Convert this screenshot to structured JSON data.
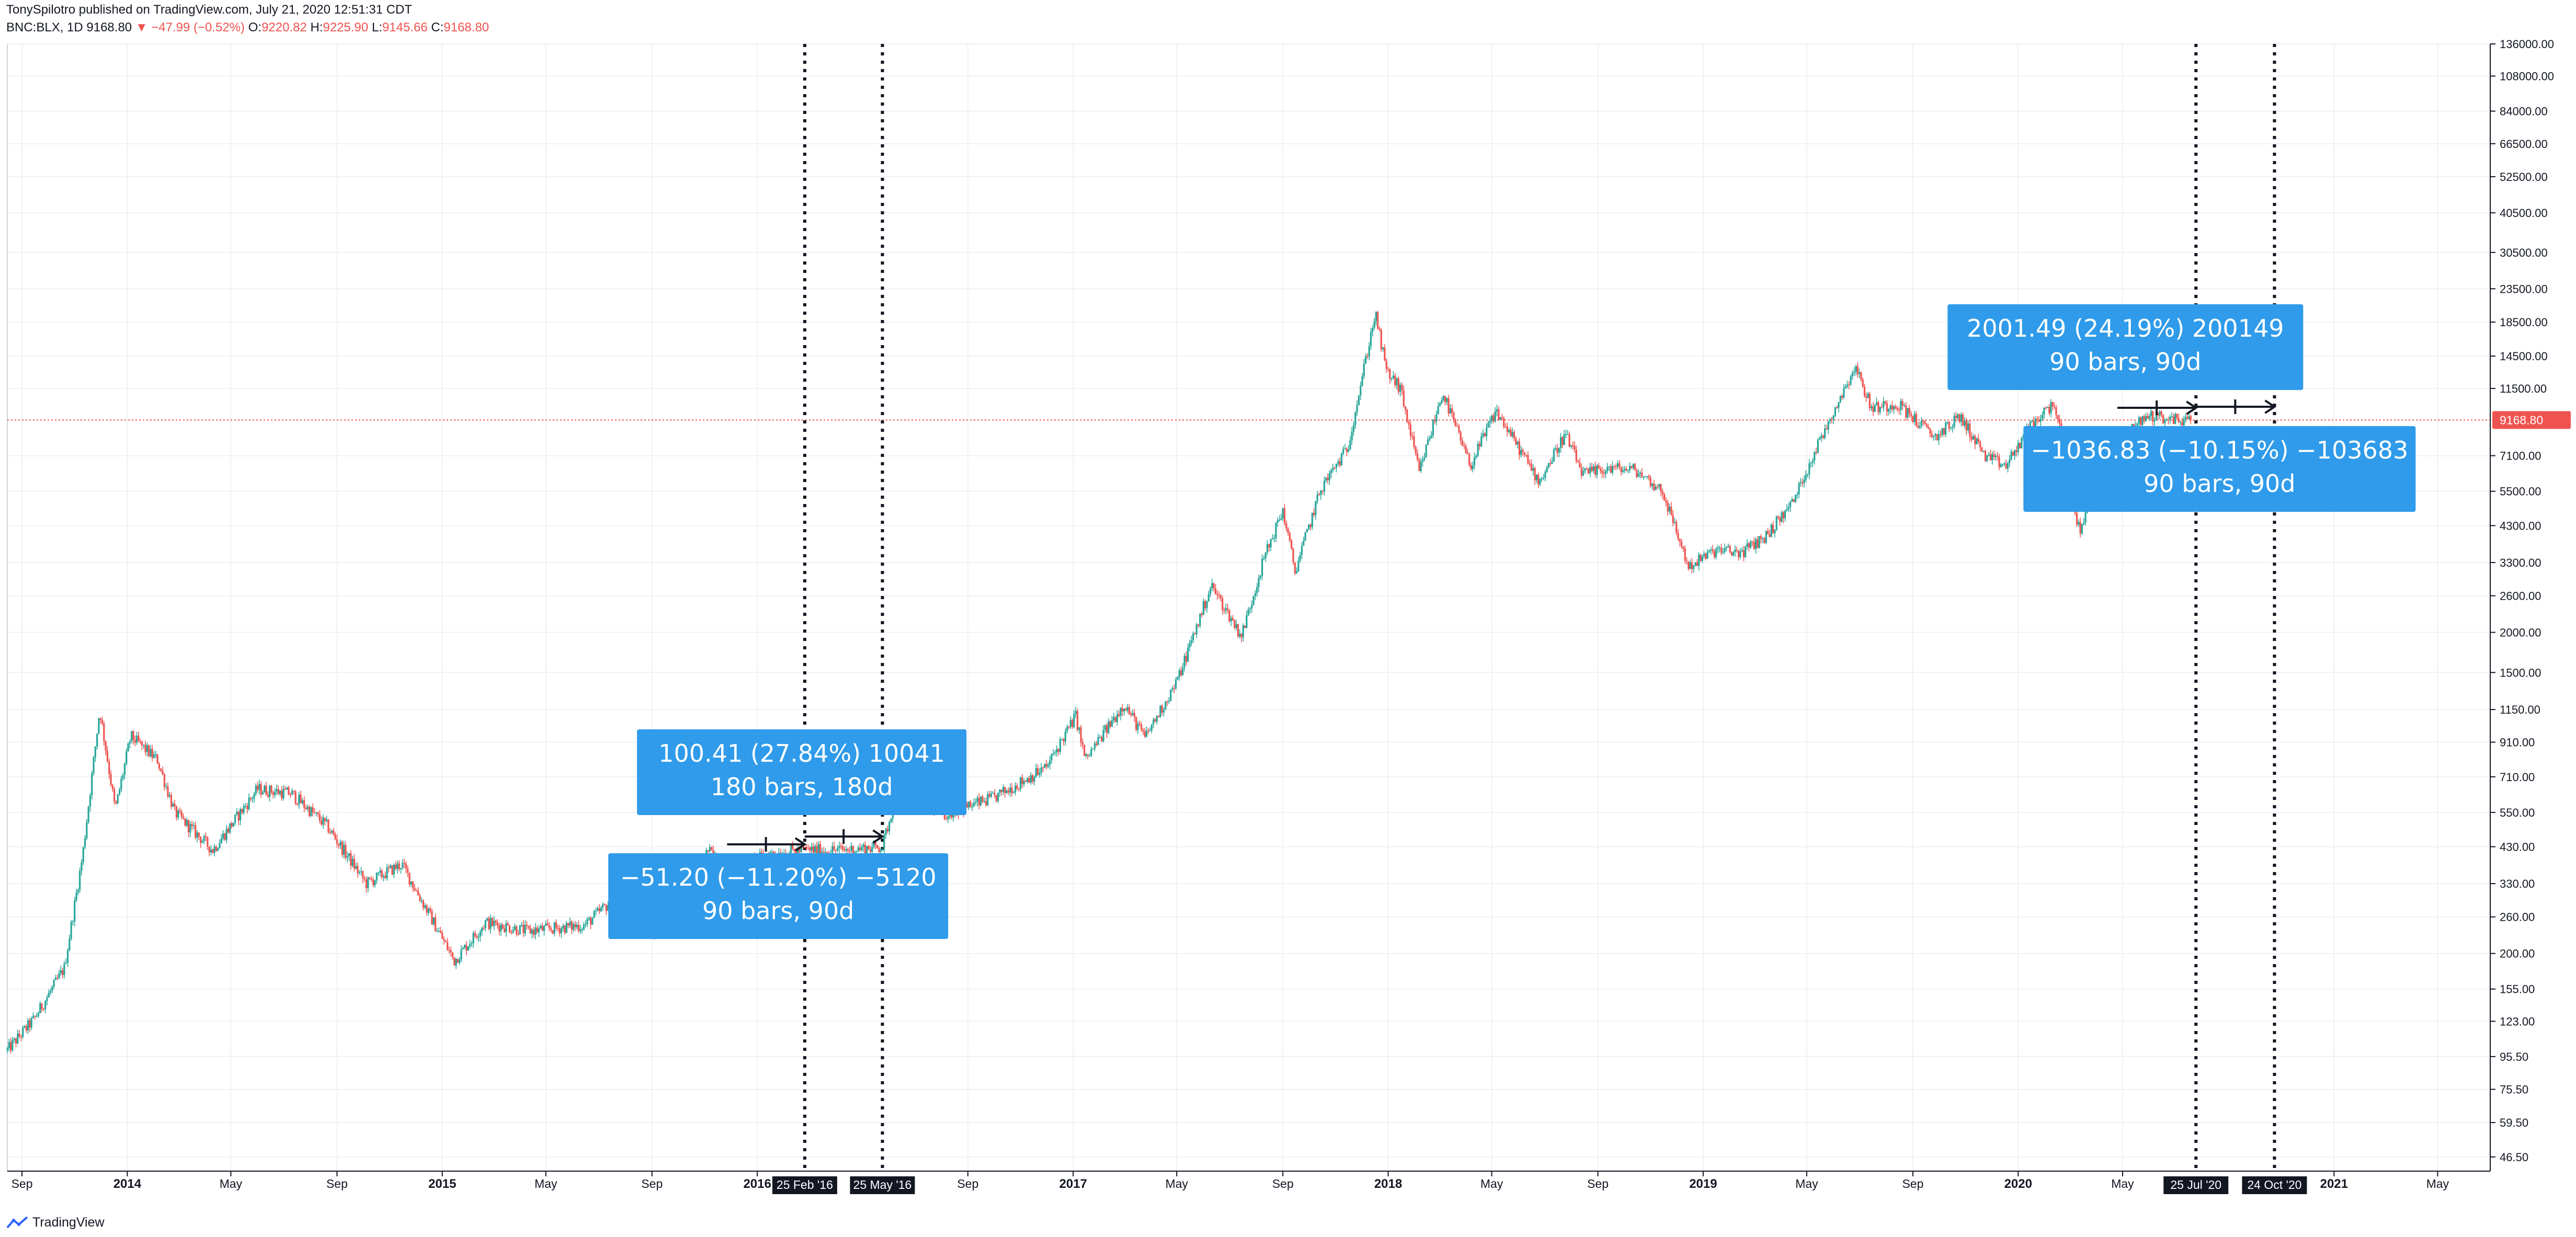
{
  "header": {
    "line1": "TonySpilotro published on TradingView.com, July 21, 2020 12:51:31 CDT",
    "symbol": "BNC:BLX, 1D",
    "last": "9168.80",
    "change": "▼ −47.99 (−0.52%)",
    "o_label": "O:",
    "o_value": "9220.82",
    "h_label": "H:",
    "h_value": "9225.90",
    "l_label": "L:",
    "l_value": "9145.66",
    "c_label": "C:",
    "c_value": "9168.80"
  },
  "footer": {
    "brand": "TradingView"
  },
  "price_tag": "9168.80",
  "colors": {
    "up": "#26a69a",
    "down": "#ef5350",
    "box": "#2f9bea",
    "text": "#131722",
    "priceline": "#ef5350"
  },
  "chart_data": {
    "type": "line",
    "title": "",
    "xlabel": "",
    "ylabel": "",
    "log_scale": true,
    "ylim": [
      42,
      136000
    ],
    "xlim": [
      "2013-08-15",
      "2021-07-01"
    ],
    "grid": true,
    "y_ticks": [
      "136000.00",
      "108000.00",
      "84000.00",
      "66500.00",
      "52500.00",
      "40500.00",
      "30500.00",
      "23500.00",
      "18500.00",
      "14500.00",
      "11500.00",
      "9168.80",
      "7100.00",
      "5500.00",
      "4300.00",
      "3300.00",
      "2600.00",
      "2000.00",
      "1500.00",
      "1150.00",
      "910.00",
      "710.00",
      "550.00",
      "430.00",
      "330.00",
      "260.00",
      "200.00",
      "155.00",
      "123.00",
      "95.50",
      "75.50",
      "59.50",
      "46.50"
    ],
    "x_ticks": [
      {
        "label": "Sep",
        "date": "2013-09-01",
        "bold": false
      },
      {
        "label": "2014",
        "date": "2014-01-01",
        "bold": true
      },
      {
        "label": "May",
        "date": "2014-05-01",
        "bold": false
      },
      {
        "label": "Sep",
        "date": "2014-09-01",
        "bold": false
      },
      {
        "label": "2015",
        "date": "2015-01-01",
        "bold": true
      },
      {
        "label": "May",
        "date": "2015-05-01",
        "bold": false
      },
      {
        "label": "Sep",
        "date": "2015-09-01",
        "bold": false
      },
      {
        "label": "2016",
        "date": "2016-01-01",
        "bold": true
      },
      {
        "label": "Sep",
        "date": "2016-09-01",
        "bold": false
      },
      {
        "label": "2017",
        "date": "2017-01-01",
        "bold": true
      },
      {
        "label": "May",
        "date": "2017-05-01",
        "bold": false
      },
      {
        "label": "Sep",
        "date": "2017-09-01",
        "bold": false
      },
      {
        "label": "2018",
        "date": "2018-01-01",
        "bold": true
      },
      {
        "label": "May",
        "date": "2018-05-01",
        "bold": false
      },
      {
        "label": "Sep",
        "date": "2018-09-01",
        "bold": false
      },
      {
        "label": "2019",
        "date": "2019-01-01",
        "bold": true
      },
      {
        "label": "May",
        "date": "2019-05-01",
        "bold": false
      },
      {
        "label": "Sep",
        "date": "2019-09-01",
        "bold": false
      },
      {
        "label": "2020",
        "date": "2020-01-01",
        "bold": true
      },
      {
        "label": "May",
        "date": "2020-05-01",
        "bold": false
      },
      {
        "label": "2021",
        "date": "2021-01-01",
        "bold": true
      },
      {
        "label": "May",
        "date": "2021-05-01",
        "bold": false
      }
    ],
    "vlines": [
      {
        "date": "2016-02-25",
        "label": "25 Feb '16"
      },
      {
        "date": "2016-05-25",
        "label": "25 May '16"
      },
      {
        "date": "2020-07-25",
        "label": "25 Jul '20"
      },
      {
        "date": "2020-10-24",
        "label": "24 Oct '20"
      }
    ],
    "series": [
      {
        "values": [
          [
            "2013-08-15",
            100
          ],
          [
            "2013-09-15",
            125
          ],
          [
            "2013-10-20",
            180
          ],
          [
            "2013-11-10",
            400
          ],
          [
            "2013-11-30",
            1150
          ],
          [
            "2013-12-18",
            560
          ],
          [
            "2014-01-05",
            950
          ],
          [
            "2014-02-05",
            800
          ],
          [
            "2014-02-25",
            550
          ],
          [
            "2014-04-10",
            420
          ],
          [
            "2014-06-01",
            650
          ],
          [
            "2014-07-10",
            630
          ],
          [
            "2014-08-20",
            500
          ],
          [
            "2014-10-05",
            330
          ],
          [
            "2014-11-15",
            380
          ],
          [
            "2015-01-15",
            190
          ],
          [
            "2015-02-20",
            250
          ],
          [
            "2015-04-10",
            235
          ],
          [
            "2015-06-15",
            245
          ],
          [
            "2015-07-15",
            290
          ],
          [
            "2015-09-01",
            230
          ],
          [
            "2015-10-15",
            260
          ],
          [
            "2015-11-04",
            420
          ],
          [
            "2015-12-01",
            360
          ],
          [
            "2016-01-15",
            410
          ],
          [
            "2016-02-25",
            420
          ],
          [
            "2016-04-10",
            420
          ],
          [
            "2016-05-25",
            430
          ],
          [
            "2016-06-17",
            740
          ],
          [
            "2016-08-02",
            540
          ],
          [
            "2016-10-01",
            610
          ],
          [
            "2016-12-01",
            760
          ],
          [
            "2017-01-04",
            1100
          ],
          [
            "2017-01-15",
            800
          ],
          [
            "2017-03-01",
            1200
          ],
          [
            "2017-03-25",
            940
          ],
          [
            "2017-05-01",
            1400
          ],
          [
            "2017-06-10",
            2800
          ],
          [
            "2017-07-15",
            1950
          ],
          [
            "2017-08-10",
            3400
          ],
          [
            "2017-09-01",
            4800
          ],
          [
            "2017-09-15",
            3100
          ],
          [
            "2017-10-15",
            5600
          ],
          [
            "2017-11-15",
            7500
          ],
          [
            "2017-12-17",
            19700
          ],
          [
            "2017-12-30",
            13000
          ],
          [
            "2018-01-15",
            11500
          ],
          [
            "2018-02-06",
            6300
          ],
          [
            "2018-03-05",
            11200
          ],
          [
            "2018-04-06",
            6600
          ],
          [
            "2018-05-06",
            9800
          ],
          [
            "2018-06-25",
            5900
          ],
          [
            "2018-07-25",
            8300
          ],
          [
            "2018-08-15",
            6200
          ],
          [
            "2018-09-15",
            6500
          ],
          [
            "2018-10-15",
            6400
          ],
          [
            "2018-11-15",
            5500
          ],
          [
            "2018-12-15",
            3200
          ],
          [
            "2019-01-15",
            3600
          ],
          [
            "2019-02-15",
            3550
          ],
          [
            "2019-03-15",
            4000
          ],
          [
            "2019-04-15",
            5100
          ],
          [
            "2019-05-15",
            7800
          ],
          [
            "2019-06-26",
            13500
          ],
          [
            "2019-07-15",
            10000
          ],
          [
            "2019-08-15",
            10300
          ],
          [
            "2019-09-26",
            8100
          ],
          [
            "2019-10-26",
            9400
          ],
          [
            "2019-11-25",
            7000
          ],
          [
            "2019-12-18",
            6600
          ],
          [
            "2020-01-15",
            8800
          ],
          [
            "2020-02-12",
            10400
          ],
          [
            "2020-03-12",
            4100
          ],
          [
            "2020-04-10",
            6900
          ],
          [
            "2020-05-10",
            8600
          ],
          [
            "2020-06-01",
            9500
          ],
          [
            "2020-07-01",
            9200
          ],
          [
            "2020-07-20",
            9168.8
          ]
        ]
      }
    ],
    "annotations": [
      {
        "text1": "100.41 (27.84%) 10041",
        "text2": "180 bars, 180d"
      },
      {
        "text1": "−51.20 (−11.20%) −5120",
        "text2": "90 bars, 90d"
      },
      {
        "text1": "2001.49 (24.19%) 200149",
        "text2": "90 bars, 90d"
      },
      {
        "text1": "−1036.83 (−10.15%) −103683",
        "text2": "90 bars, 90d"
      }
    ]
  }
}
